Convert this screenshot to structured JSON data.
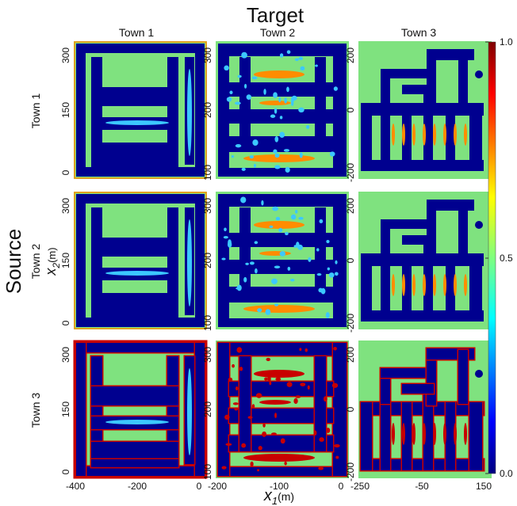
{
  "figure": {
    "title": "Target",
    "source_label": "Source",
    "xlabel_var": "x",
    "xlabel_sub": "1",
    "xlabel_unit": "(m)",
    "ylabel_var": "x",
    "ylabel_sub": "2",
    "ylabel_unit": "(m)"
  },
  "colorbar": {
    "min_label": "0.0",
    "mid_label": "0.5",
    "max_label": "1.0",
    "colors": [
      "#00007f",
      "#0000ff",
      "#007fff",
      "#00ffff",
      "#7fff7f",
      "#ffff00",
      "#ff7f00",
      "#ff0000",
      "#7f0000"
    ]
  },
  "colors": {
    "background_green": "#7fe27f",
    "road_blue": "#00008f",
    "edge_red": "#c80000",
    "orange": "#ff8c00",
    "cyan": "#3cc8ff"
  },
  "chart_data": {
    "type": "heatmap",
    "title": "Target",
    "rows_label": "Source",
    "columns_label": "Target",
    "towns": [
      "Town 1",
      "Town 2",
      "Town 3"
    ],
    "columns": [
      {
        "name": "Town 1",
        "xticks": [
          "-400",
          "-200",
          "0"
        ],
        "yticks": [
          "0",
          "150",
          "300"
        ],
        "xlim": [
          -400,
          10
        ],
        "ylim": [
          -10,
          335
        ]
      },
      {
        "name": "Town 2",
        "xticks": [
          "-200",
          "-100",
          "0"
        ],
        "yticks": [
          "100",
          "200",
          "300"
        ],
        "xlim": [
          -210,
          15
        ],
        "ylim": [
          80,
          320
        ]
      },
      {
        "name": "Town 3",
        "xticks": [
          "-250",
          "-50",
          "150"
        ],
        "yticks": [
          "-200",
          "0",
          "200"
        ],
        "xlim": [
          -250,
          160
        ],
        "ylim": [
          -230,
          215
        ]
      }
    ],
    "color_scale": {
      "min": 0.0,
      "max": 1.0,
      "ticks": [
        0.0,
        0.5,
        1.0
      ]
    },
    "xlabel": "x1 (m)",
    "ylabel": "x2 (m)"
  }
}
